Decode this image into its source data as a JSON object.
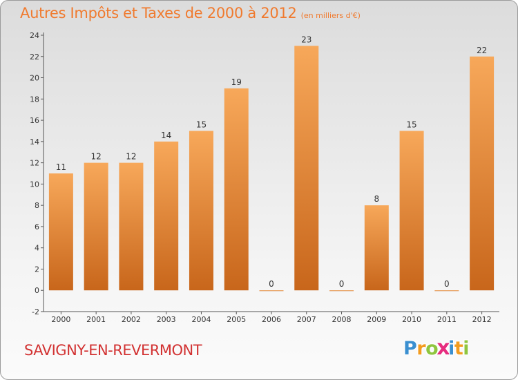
{
  "title": "Autres Impôts et Taxes de 2000 à 2012",
  "subtitle": "(en milliers d'€)",
  "town": "SAVIGNY-EN-REVERMONT",
  "logo": {
    "letters": [
      "P",
      "r",
      "o",
      "x",
      "i",
      "t",
      "i"
    ],
    "colors": [
      "#3a8fd0",
      "#f39c1f",
      "#8fc53e",
      "#e62d7f",
      "#3a8fd0",
      "#f39c1f",
      "#8fc53e"
    ]
  },
  "colors": {
    "bar_light": "#f7a85a",
    "bar_dark": "#c8661b",
    "title": "#f07a2e",
    "town": "#d23232"
  },
  "chart_data": {
    "type": "bar",
    "categories": [
      "2000",
      "2001",
      "2002",
      "2003",
      "2004",
      "2005",
      "2006",
      "2007",
      "2008",
      "2009",
      "2010",
      "2011",
      "2012"
    ],
    "values": [
      11,
      12,
      12,
      14,
      15,
      19,
      0,
      23,
      0,
      8,
      15,
      0,
      22
    ],
    "data_labels": [
      "11",
      "12",
      "12",
      "14",
      "15",
      "19",
      "0",
      "23",
      "0",
      "8",
      "15",
      "0",
      "22"
    ],
    "yticks": [
      -2,
      0,
      2,
      4,
      6,
      8,
      10,
      12,
      14,
      16,
      18,
      20,
      22,
      24
    ],
    "ylim": [
      -2,
      24
    ],
    "grid": false
  }
}
